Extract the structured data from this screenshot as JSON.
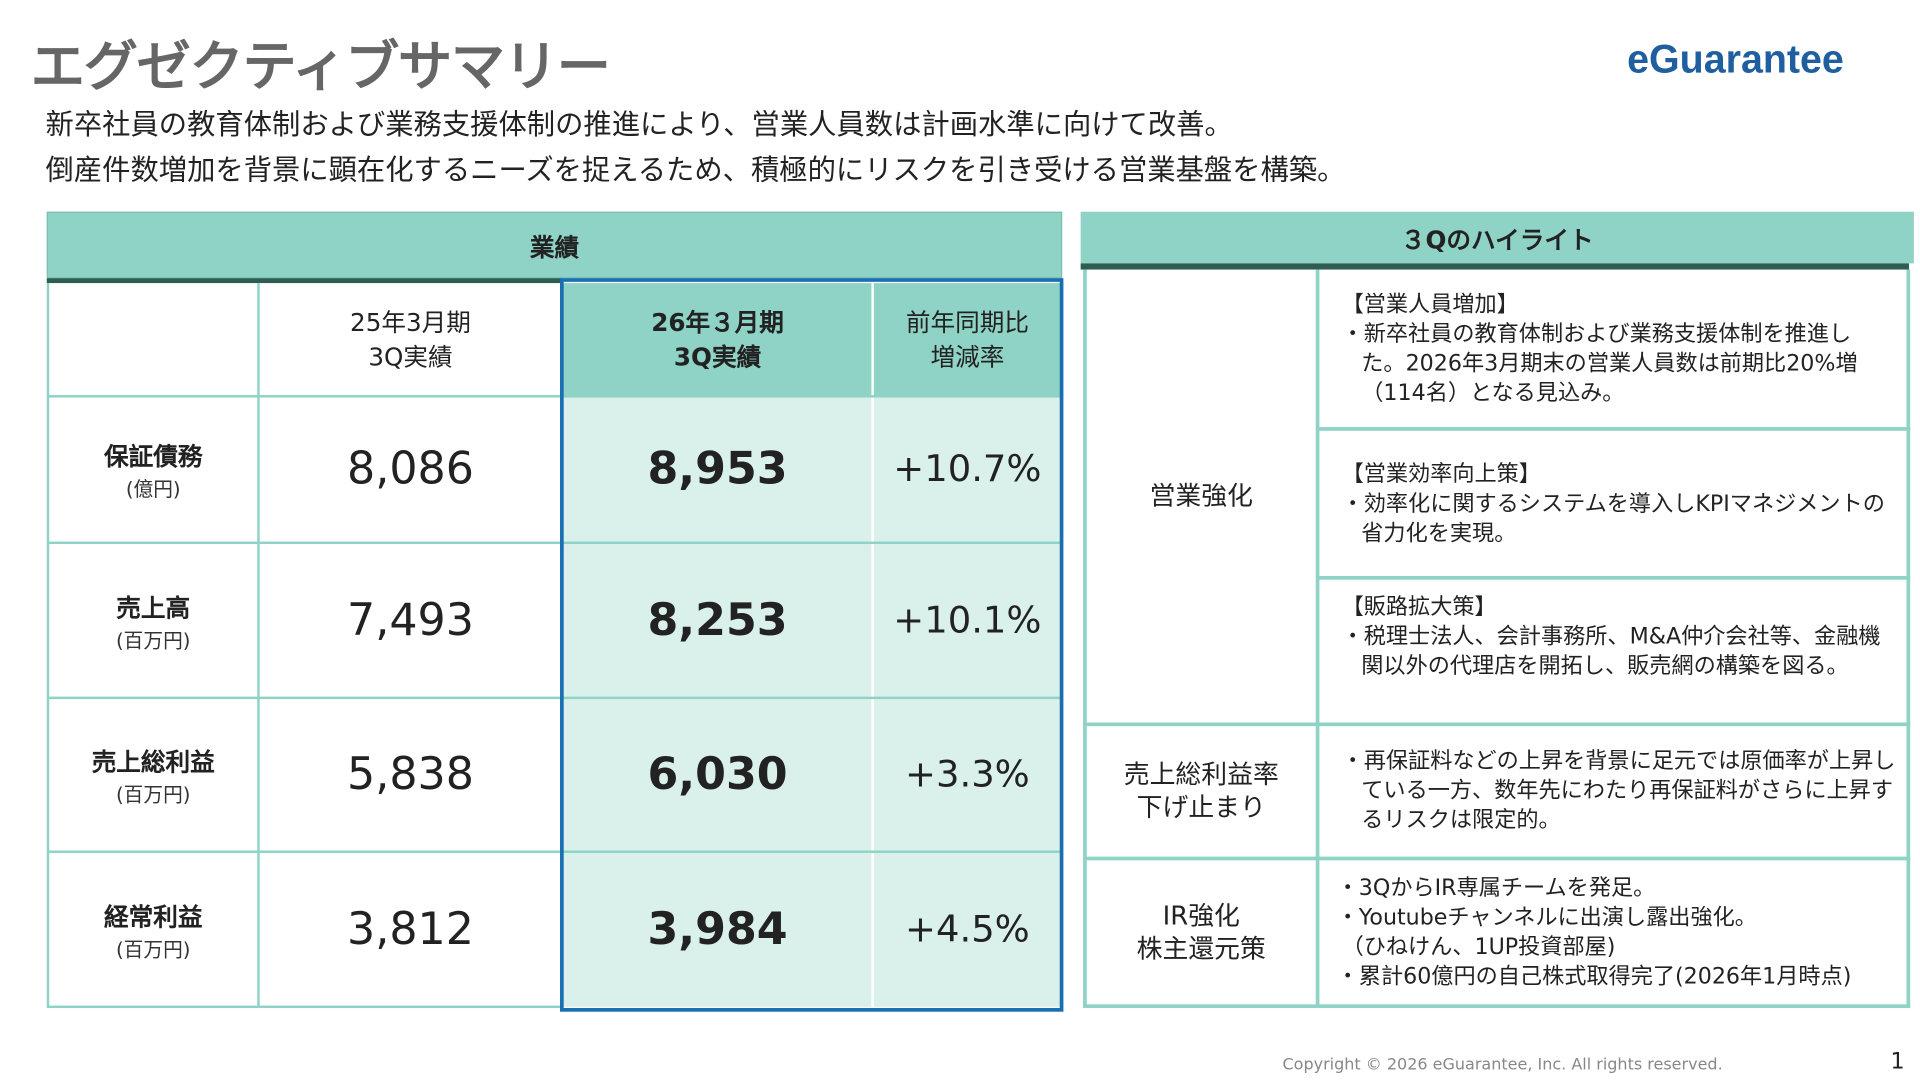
{
  "header": {
    "title": "エグゼクティブサマリー",
    "logo": "eGuarantee",
    "lines": [
      "新卒社員の教育体制および業務支援体制の推進により、営業人員数は計画水準に向けて改善。",
      "倒産件数増加を背景に顕在化するニーズを捉えるため、積極的にリスクを引き受ける営業基盤を構築。"
    ]
  },
  "performance": {
    "title": "業績",
    "columns": [
      "25年3月期\n3Q実績",
      "26年３月期\n3Q実績",
      "前年同期比\n増減率"
    ],
    "rows": [
      {
        "label": "保証債務",
        "unit": "(億円)",
        "prev": "8,086",
        "curr": "8,953",
        "change": "+10.7%"
      },
      {
        "label": "売上高",
        "unit": "(百万円)",
        "prev": "7,493",
        "curr": "8,253",
        "change": "+10.1%"
      },
      {
        "label": "売上総利益",
        "unit": "(百万円)",
        "prev": "5,838",
        "curr": "6,030",
        "change": "+3.3%"
      },
      {
        "label": "経常利益",
        "unit": "(百万円)",
        "prev": "3,812",
        "curr": "3,984",
        "change": "+4.5%"
      }
    ],
    "colors": {
      "header": "#8fd3c6",
      "highlight": "#d9f0eb",
      "border": "#1a6fb3"
    }
  },
  "highlights": {
    "title": "３Qのハイライト",
    "sales_category": "営業強化",
    "sales_items": [
      {
        "heading": "【営業人員増加】",
        "text": "・新卒社員の教育体制および業務支援体制を推進した。2026年3月期末の営業人員数は前期比20%増（114名）となる見込み。"
      },
      {
        "heading": "【営業効率向上策】",
        "text": "・効率化に関するシステムを導入しKPIマネジメントの省力化を実現。"
      },
      {
        "heading": "【販路拡大策】",
        "text": "・税理士法人、会計事務所、M&A仲介会社等、金融機関以外の代理店を開拓し、販売網の構築を図る。"
      }
    ],
    "margin_category": "売上総利益率\n下げ止まり",
    "margin_text": "・再保証料などの上昇を背景に足元では原価率が上昇している一方、数年先にわたり再保証料がさらに上昇するリスクは限定的。",
    "ir_category": "IR強化\n株主還元策",
    "ir_lines": [
      "・3QからIR専属チームを発足。",
      "・Youtubeチャンネルに出演し露出強化。",
      "（ひねけん、1UP投資部屋)",
      "・累計60億円の自己株式取得完了(2026年1月時点)"
    ]
  },
  "footer": {
    "copyright": "Copyright © 2026 eGuarantee, Inc. All rights reserved.",
    "page": "1"
  }
}
